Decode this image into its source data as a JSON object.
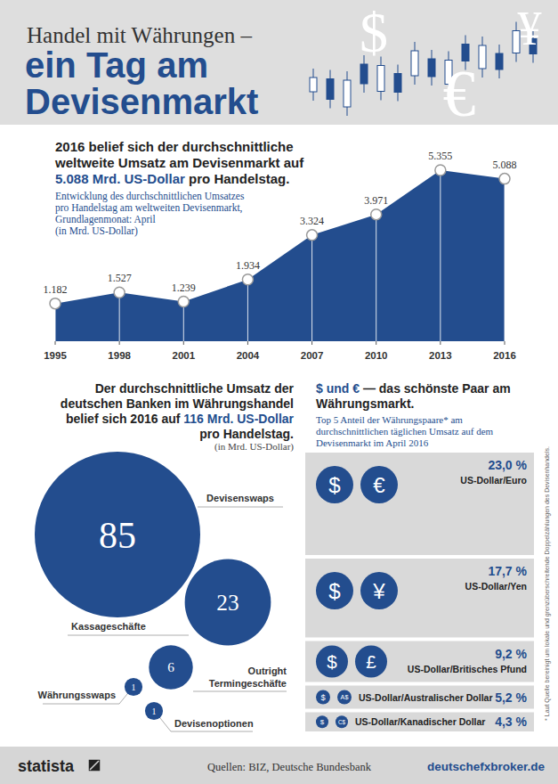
{
  "header": {
    "title_line1": "Handel mit Währungen –",
    "title_line2": "ein Tag am",
    "title_line3": "Devisenmarkt",
    "symbols": [
      "$",
      "€",
      "¥"
    ]
  },
  "chart_data": [
    {
      "type": "area",
      "title": [
        {
          "text": "2016 belief sich der durchschnittliche weltweite Umsatz am Devisenmarkt auf ",
          "highlight": false
        },
        {
          "text": "5.088 Mrd. US-Dollar",
          "highlight": true
        },
        {
          "text": " pro Handelstag.",
          "highlight": false
        }
      ],
      "subtitle": [
        "Entwicklung des durchschnittlichen Umsatzes",
        "pro Handelstag am weltweiten Devisenmarkt,",
        "Grundlagenmonat: April",
        "(in Mrd. US-Dollar)"
      ],
      "x": [
        1995,
        1998,
        2001,
        2004,
        2007,
        2010,
        2013,
        2016
      ],
      "values": [
        1182,
        1527,
        1239,
        1934,
        3324,
        3971,
        5355,
        5088
      ],
      "value_labels": [
        "1.182",
        "1.527",
        "1.239",
        "1.934",
        "3.324",
        "3.971",
        "5.355",
        "5.088"
      ],
      "xlim": [
        1995,
        2016
      ],
      "xticks": [
        1995,
        1998,
        2001,
        2004,
        2007,
        2010,
        2013,
        2016
      ],
      "ylim": [
        0,
        6500
      ],
      "color": "#234d8e",
      "grid": true,
      "marker": "circle",
      "data_labels": true,
      "tick_labels": "x"
    },
    {
      "type": "bubble",
      "title": [
        {
          "text": "Der durchschnittliche Umsatz der deutschen Banken im Währungshandel belief sich 2016 auf ",
          "highlight": false
        },
        {
          "text": "116 Mrd. US-Dollar",
          "highlight": true
        },
        {
          "text": " pro Handelstag.",
          "highlight": false
        }
      ],
      "subtitle": "(in Mrd. US-Dollar)",
      "categories": [
        "Devisenswaps",
        "Kassageschäfte",
        "Outright Termingeschäfte",
        "Währungsswaps",
        "Devisenoptionen"
      ],
      "values": [
        85,
        23,
        6,
        1,
        1
      ],
      "color": "#234d8e",
      "data_labels": true
    },
    {
      "type": "bar",
      "orientation": "horizontal",
      "title": [
        {
          "text": "$ und €",
          "highlight": true
        },
        {
          "text": " — das schönste Paar am Währungsmarkt.",
          "highlight": false
        }
      ],
      "subtitle": "Top 5 Anteil der Währungspaare* am durchschnittlichen täglichen Umsatz auf dem Devisenmarkt im April 2016",
      "categories": [
        "US-Dollar/Euro",
        "US-Dollar/Yen",
        "US-Dollar/Britisches Pfund",
        "US-Dollar/Australischer Dollar",
        "US-Dollar/Kanadischer Dollar"
      ],
      "symbols": [
        [
          "$",
          "€"
        ],
        [
          "$",
          "¥"
        ],
        [
          "$",
          "£"
        ],
        [
          "$",
          "A$"
        ],
        [
          "$",
          "C$"
        ]
      ],
      "values": [
        23.0,
        17.7,
        9.2,
        5.2,
        4.3
      ],
      "value_labels": [
        "23,0 %",
        "17,7 %",
        "9,2 %",
        "5,2 %",
        "4,3 %"
      ],
      "xlim": [
        0,
        25
      ],
      "color": "#d9d9d9",
      "data_labels": true,
      "tick_labels": false
    }
  ],
  "footnote": "* Laut Quelle bereinigt um lokale und grenzüberschreitende Doppelzählungen des Devisenhandels.",
  "footer": {
    "brand": "statista",
    "sources": "Quellen: BIZ, Deutsche Bundesbank",
    "website": "deutschefxbroker.de"
  }
}
